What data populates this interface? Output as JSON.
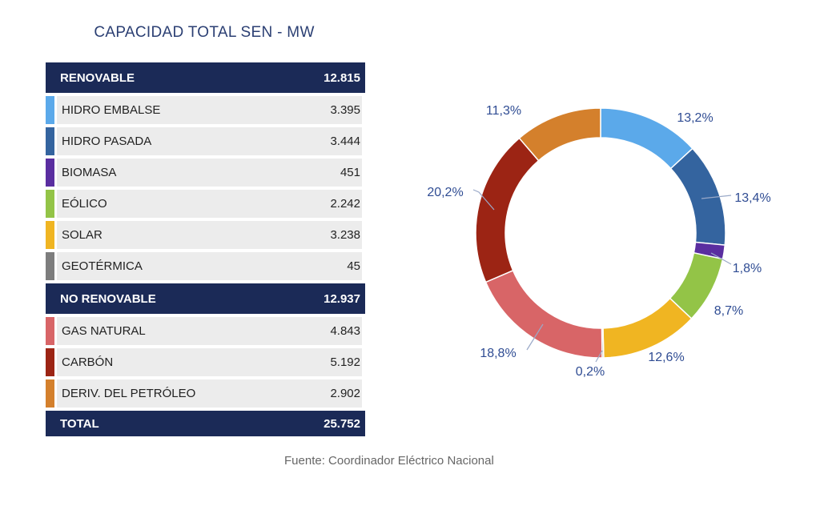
{
  "title": "CAPACIDAD TOTAL SEN - MW",
  "source": "Fuente: Coordinador Eléctrico Nacional",
  "table": {
    "renovable": {
      "label": "RENOVABLE",
      "value": "12.815"
    },
    "renovable_items": [
      {
        "label": "HIDRO EMBALSE",
        "value": "3.395",
        "color": "#5ba9ea"
      },
      {
        "label": "HIDRO PASADA",
        "value": "3.444",
        "color": "#34649f"
      },
      {
        "label": "BIOMASA",
        "value": "451",
        "color": "#5a2ea0"
      },
      {
        "label": "EÓLICO",
        "value": "2.242",
        "color": "#93c447"
      },
      {
        "label": "SOLAR",
        "value": "3.238",
        "color": "#f0b522"
      },
      {
        "label": "GEOTÉRMICA",
        "value": "45",
        "color": "#7d7d7d"
      }
    ],
    "no_renovable": {
      "label": "NO RENOVABLE",
      "value": "12.937"
    },
    "no_renovable_items": [
      {
        "label": "GAS NATURAL",
        "value": "4.843",
        "color": "#d86567"
      },
      {
        "label": "CARBÓN",
        "value": "5.192",
        "color": "#9c2414"
      },
      {
        "label": "DERIV. DEL PETRÓLEO",
        "value": "2.902",
        "color": "#d4802c"
      }
    ],
    "total": {
      "label": "TOTAL",
      "value": "25.752"
    }
  },
  "chart_data": {
    "type": "pie",
    "slices": [
      {
        "category": "HIDRO EMBALSE",
        "value": 13.2,
        "label": "13,2%",
        "color": "#5ba9ea"
      },
      {
        "category": "HIDRO PASADA",
        "value": 13.4,
        "label": "13,4%",
        "color": "#34649f"
      },
      {
        "category": "BIOMASA",
        "value": 1.8,
        "label": "1,8%",
        "color": "#5a2ea0"
      },
      {
        "category": "EÓLICO",
        "value": 8.7,
        "label": "8,7%",
        "color": "#93c447"
      },
      {
        "category": "SOLAR",
        "value": 12.6,
        "label": "12,6%",
        "color": "#f0b522"
      },
      {
        "category": "GEOTÉRMICA",
        "value": 0.2,
        "label": "0,2%",
        "color": "#7d7d7d"
      },
      {
        "category": "GAS NATURAL",
        "value": 18.8,
        "label": "18,8%",
        "color": "#d86567"
      },
      {
        "category": "CARBÓN",
        "value": 20.2,
        "label": "20,2%",
        "color": "#9c2414"
      },
      {
        "category": "DERIV. DEL PETRÓLEO",
        "value": 11.3,
        "label": "11,3%",
        "color": "#d4802c"
      }
    ],
    "label_color": "#2f4c93"
  }
}
